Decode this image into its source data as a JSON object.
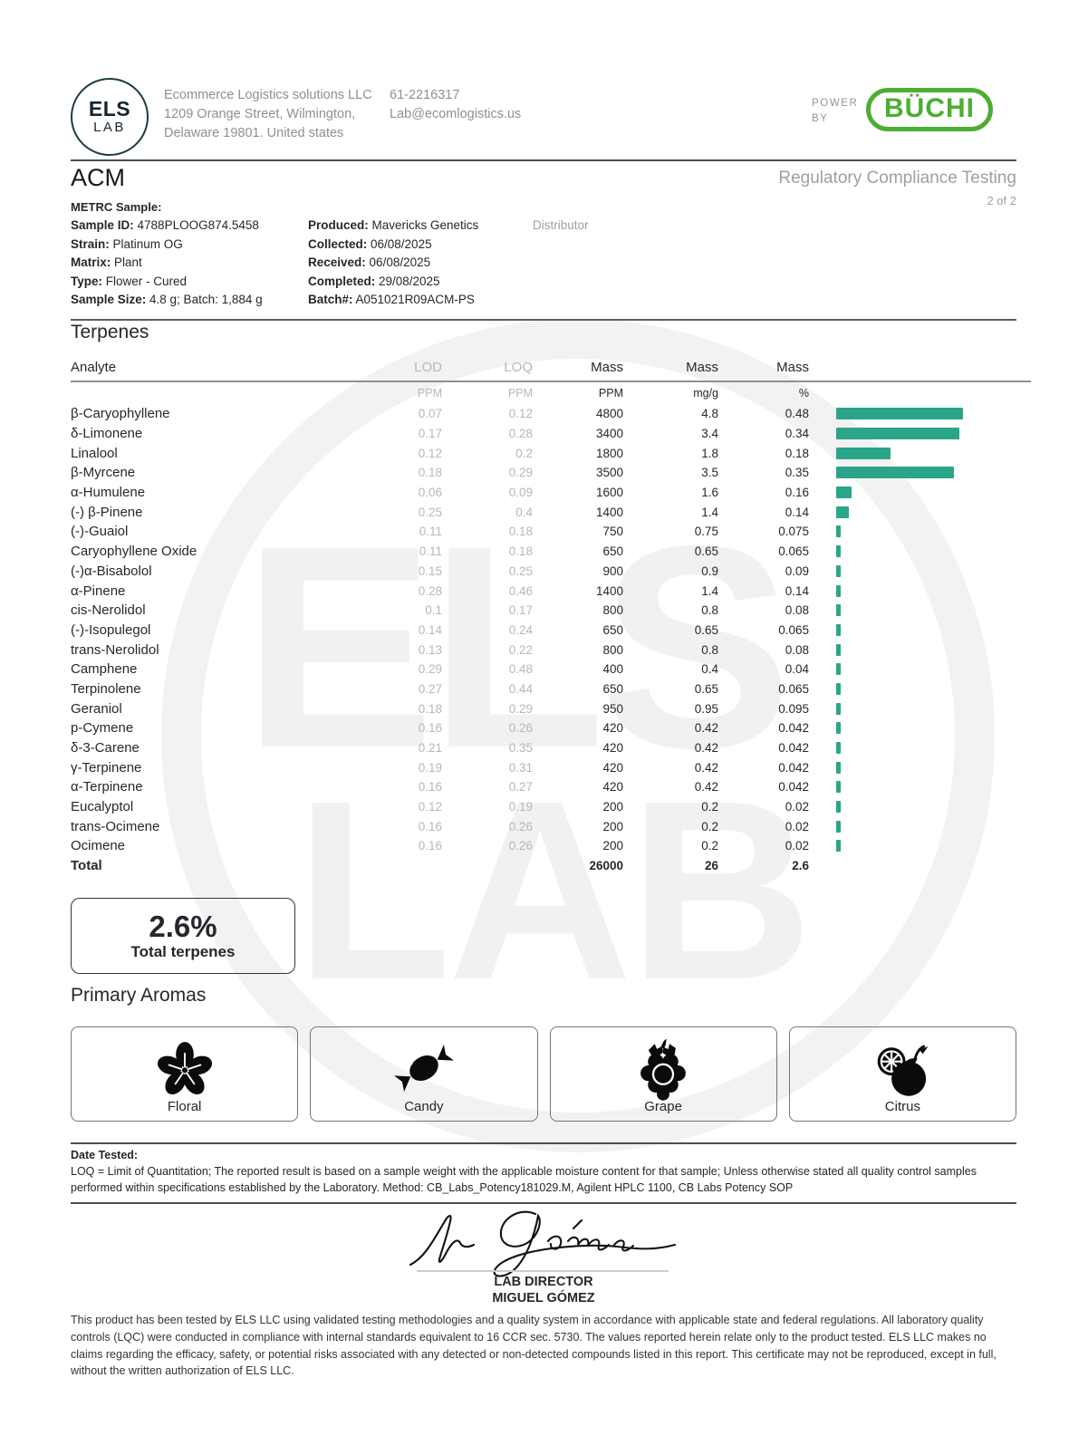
{
  "header": {
    "logo": {
      "line1": "ELS",
      "line2": "LAB"
    },
    "company": {
      "name": "Ecommerce Logistics solutions LLC",
      "address1": "1209 Orange Street, Wilmington,",
      "address2": "Delaware 19801. United states"
    },
    "contact": {
      "phone": "61-2216317",
      "email": "Lab@ecomlogistics.us"
    },
    "power_by": {
      "line1": "POWER",
      "line2": "BY",
      "brand": "BÜCHI"
    }
  },
  "report": {
    "client": "ACM",
    "title": "Regulatory Compliance Testing",
    "page": "2 of 2",
    "metrc_label": "METRC Sample:",
    "fields_left": [
      {
        "label": "Sample ID:",
        "value": " 4788PLOOG874.5458"
      },
      {
        "label": "Strain:",
        "value": " Platinum OG"
      },
      {
        "label": "Matrix:",
        "value": " Plant"
      },
      {
        "label": "Type:",
        "value": " Flower - Cured"
      },
      {
        "label": "Sample Size:",
        "value": " 4.8 g; Batch: 1,884 g"
      }
    ],
    "fields_mid": [
      {
        "label": "Produced:",
        "value": " Mavericks Genetics"
      },
      {
        "label": "Collected:",
        "value": " 06/08/2025"
      },
      {
        "label": "Received:",
        "value": " 06/08/2025"
      },
      {
        "label": "Completed:",
        "value": " 29/08/2025"
      },
      {
        "label": "Batch#:",
        "value": " A051021R09ACM-PS"
      }
    ],
    "distributor_label": "Distributor"
  },
  "terpenes": {
    "section_title": "Terpenes",
    "columns": {
      "analyte": "Analyte",
      "lod": "LOD",
      "loq": "LOQ",
      "mass1": "Mass",
      "mass2": "Mass",
      "mass3": "Mass"
    },
    "units": {
      "lod": "PPM",
      "loq": "PPM",
      "mass1": "PPM",
      "mass2": "mg/g",
      "mass3": "%"
    },
    "rows": [
      {
        "analyte": "β-Caryophyllene",
        "lod": "0.07",
        "loq": "0.12",
        "ppm": "4800",
        "mgg": "4.8",
        "pct": "0.48",
        "bar": 140
      },
      {
        "analyte": "δ-Limonene",
        "lod": "0.17",
        "loq": "0.28",
        "ppm": "3400",
        "mgg": "3.4",
        "pct": "0.34",
        "bar": 136
      },
      {
        "analyte": "Linalool",
        "lod": "0.12",
        "loq": "0.2",
        "ppm": "1800",
        "mgg": "1.8",
        "pct": "0.18",
        "bar": 60
      },
      {
        "analyte": "β-Myrcene",
        "lod": "0.18",
        "loq": "0.29",
        "ppm": "3500",
        "mgg": "3.5",
        "pct": "0.35",
        "bar": 130
      },
      {
        "analyte": "α-Humulene",
        "lod": "0.06",
        "loq": "0.09",
        "ppm": "1600",
        "mgg": "1.6",
        "pct": "0.16",
        "bar": 17
      },
      {
        "analyte": "(-) β-Pinene",
        "lod": "0.25",
        "loq": "0.4",
        "ppm": "1400",
        "mgg": "1.4",
        "pct": "0.14",
        "bar": 14
      },
      {
        "analyte": "(-)-Guaiol",
        "lod": "0.11",
        "loq": "0.18",
        "ppm": "750",
        "mgg": "0.75",
        "pct": "0.075",
        "bar": 5
      },
      {
        "analyte": "Caryophyllene Oxide",
        "lod": "0.11",
        "loq": "0.18",
        "ppm": "650",
        "mgg": "0.65",
        "pct": "0.065",
        "bar": 5
      },
      {
        "analyte": "(-)α-Bisabolol",
        "lod": "0.15",
        "loq": "0.25",
        "ppm": "900",
        "mgg": "0.9",
        "pct": "0.09",
        "bar": 5
      },
      {
        "analyte": "α-Pinene",
        "lod": "0.28",
        "loq": "0.46",
        "ppm": "1400",
        "mgg": "1.4",
        "pct": "0.14",
        "bar": 5
      },
      {
        "analyte": "cis-Nerolidol",
        "lod": "0.1",
        "loq": "0.17",
        "ppm": "800",
        "mgg": "0.8",
        "pct": "0.08",
        "bar": 5
      },
      {
        "analyte": "(-)-Isopulegol",
        "lod": "0.14",
        "loq": "0.24",
        "ppm": "650",
        "mgg": "0.65",
        "pct": "0.065",
        "bar": 5
      },
      {
        "analyte": "trans-Nerolidol",
        "lod": "0.13",
        "loq": "0.22",
        "ppm": "800",
        "mgg": "0.8",
        "pct": "0.08",
        "bar": 5
      },
      {
        "analyte": "Camphene",
        "lod": "0.29",
        "loq": "0.48",
        "ppm": "400",
        "mgg": "0.4",
        "pct": "0.04",
        "bar": 5
      },
      {
        "analyte": "Terpinolene",
        "lod": "0.27",
        "loq": "0.44",
        "ppm": "650",
        "mgg": "0.65",
        "pct": "0.065",
        "bar": 5
      },
      {
        "analyte": "Geraniol",
        "lod": "0.18",
        "loq": "0.29",
        "ppm": "950",
        "mgg": "0.95",
        "pct": "0.095",
        "bar": 5
      },
      {
        "analyte": "p-Cymene",
        "lod": "0.16",
        "loq": "0.26",
        "ppm": "420",
        "mgg": "0.42",
        "pct": "0.042",
        "bar": 5
      },
      {
        "analyte": "δ-3-Carene",
        "lod": "0.21",
        "loq": "0.35",
        "ppm": "420",
        "mgg": "0.42",
        "pct": "0.042",
        "bar": 5
      },
      {
        "analyte": "γ-Terpinene",
        "lod": "0.19",
        "loq": "0.31",
        "ppm": "420",
        "mgg": "0.42",
        "pct": "0.042",
        "bar": 5
      },
      {
        "analyte": "α-Terpinene",
        "lod": "0.16",
        "loq": "0.27",
        "ppm": "420",
        "mgg": "0.42",
        "pct": "0.042",
        "bar": 5
      },
      {
        "analyte": "Eucalyptol",
        "lod": "0.12",
        "loq": "0.19",
        "ppm": "200",
        "mgg": "0.2",
        "pct": "0.02",
        "bar": 5
      },
      {
        "analyte": "trans-Ocimene",
        "lod": "0.16",
        "loq": "0.26",
        "ppm": "200",
        "mgg": "0.2",
        "pct": "0.02",
        "bar": 5
      },
      {
        "analyte": "Ocimene",
        "lod": "0.16",
        "loq": "0.26",
        "ppm": "200",
        "mgg": "0.2",
        "pct": "0.02",
        "bar": 5
      }
    ],
    "total": {
      "analyte": "Total",
      "ppm": "26000",
      "mgg": "26",
      "pct": "2.6"
    }
  },
  "chart_data": {
    "type": "bar",
    "title": "Terpenes mass (%)",
    "categories": [
      "β-Caryophyllene",
      "δ-Limonene",
      "Linalool",
      "β-Myrcene",
      "α-Humulene",
      "(-) β-Pinene",
      "(-)-Guaiol",
      "Caryophyllene Oxide",
      "(-)α-Bisabolol",
      "α-Pinene",
      "cis-Nerolidol",
      "(-)-Isopulegol",
      "trans-Nerolidol",
      "Camphene",
      "Terpinolene",
      "Geraniol",
      "p-Cymene",
      "δ-3-Carene",
      "γ-Terpinene",
      "α-Terpinene",
      "Eucalyptol",
      "trans-Ocimene",
      "Ocimene"
    ],
    "values": [
      0.48,
      0.34,
      0.18,
      0.35,
      0.16,
      0.14,
      0.075,
      0.065,
      0.09,
      0.14,
      0.08,
      0.065,
      0.08,
      0.04,
      0.065,
      0.095,
      0.042,
      0.042,
      0.042,
      0.042,
      0.02,
      0.02,
      0.02
    ],
    "xlabel": "",
    "ylabel": "%",
    "legend": false,
    "grid": false
  },
  "summary": {
    "value": "2.6%",
    "label": "Total terpenes"
  },
  "aromas": {
    "section_title": "Primary Aromas",
    "items": [
      {
        "label": "Floral",
        "icon": "flower-icon"
      },
      {
        "label": "Candy",
        "icon": "candy-icon"
      },
      {
        "label": "Grape",
        "icon": "grape-icon"
      },
      {
        "label": "Citrus",
        "icon": "citrus-icon"
      }
    ]
  },
  "footnotes": {
    "date_tested": "Date Tested:",
    "loq_note": "LOQ = Limit of Quantitation; The reported result is based on a sample weight with the applicable moisture content for that sample; Unless otherwise stated all quality control samples performed within specifications established by the Laboratory. Method: CB_Labs_Potency181029.M, Agilent HPLC 1100, CB Labs Potency SOP"
  },
  "signature": {
    "role": "LAB DIRECTOR",
    "name": "MIGUEL GÓMEZ"
  },
  "disclaimer": "This product has been tested by ELS LLC using validated testing methodologies and a quality system in accordance with applicable state and federal regulations. All laboratory quality controls (LQC) were conducted in compliance with internal standards equivalent to 16 CCR sec. 5730. The values reported herein relate only to the product tested. ELS LLC makes no claims regarding the efficacy, safety, or potential risks associated with any detected or non-detected compounds listed in this report. This certificate may not be reproduced, except in full, without the written authorization of ELS LLC.",
  "colors": {
    "accent_teal": "#2ba58a",
    "brand_green": "#4cae33",
    "watermark": "#f1f1f1"
  }
}
